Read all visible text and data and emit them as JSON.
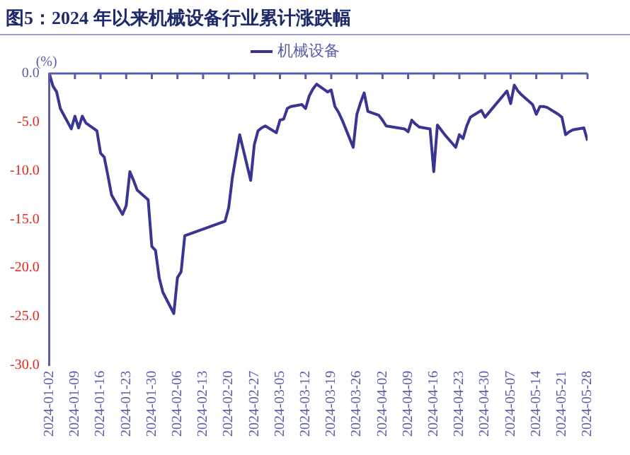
{
  "chart_data": {
    "type": "line",
    "title": "图5：2024 年以来机械设备行业累计涨跌幅",
    "ylabel": "(%)",
    "legend": "top",
    "marker": "none",
    "line_style": "solid",
    "x": [
      "2024-01-02",
      "2024-01-03",
      "2024-01-04",
      "2024-01-05",
      "2024-01-08",
      "2024-01-09",
      "2024-01-10",
      "2024-01-11",
      "2024-01-12",
      "2024-01-15",
      "2024-01-16",
      "2024-01-17",
      "2024-01-18",
      "2024-01-19",
      "2024-01-22",
      "2024-01-23",
      "2024-01-24",
      "2024-01-25",
      "2024-01-26",
      "2024-01-29",
      "2024-01-30",
      "2024-01-31",
      "2024-02-01",
      "2024-02-02",
      "2024-02-05",
      "2024-02-06",
      "2024-02-07",
      "2024-02-08",
      "2024-02-19",
      "2024-02-20",
      "2024-02-21",
      "2024-02-22",
      "2024-02-23",
      "2024-02-26",
      "2024-02-27",
      "2024-02-28",
      "2024-02-29",
      "2024-03-01",
      "2024-03-04",
      "2024-03-05",
      "2024-03-06",
      "2024-03-07",
      "2024-03-08",
      "2024-03-11",
      "2024-03-12",
      "2024-03-13",
      "2024-03-14",
      "2024-03-15",
      "2024-03-18",
      "2024-03-19",
      "2024-03-20",
      "2024-03-21",
      "2024-03-22",
      "2024-03-25",
      "2024-03-26",
      "2024-03-27",
      "2024-03-28",
      "2024-03-29",
      "2024-04-01",
      "2024-04-02",
      "2024-04-03",
      "2024-04-08",
      "2024-04-09",
      "2024-04-10",
      "2024-04-11",
      "2024-04-12",
      "2024-04-15",
      "2024-04-16",
      "2024-04-17",
      "2024-04-18",
      "2024-04-19",
      "2024-04-22",
      "2024-04-23",
      "2024-04-24",
      "2024-04-25",
      "2024-04-26",
      "2024-04-29",
      "2024-04-30",
      "2024-05-06",
      "2024-05-07",
      "2024-05-08",
      "2024-05-09",
      "2024-05-10",
      "2024-05-13",
      "2024-05-14",
      "2024-05-15",
      "2024-05-16",
      "2024-05-17",
      "2024-05-20",
      "2024-05-21",
      "2024-05-22",
      "2024-05-23",
      "2024-05-24",
      "2024-05-27",
      "2024-05-28"
    ],
    "series": [
      {
        "name": "机械设备",
        "color": "#3a3592",
        "values": [
          0,
          -1.3,
          -1.9,
          -3.6,
          -5.7,
          -4.4,
          -5.6,
          -4.4,
          -5.1,
          -5.9,
          -8.2,
          -8.6,
          -10.5,
          -12.5,
          -14.5,
          -13.6,
          -10.1,
          -11.0,
          -12.0,
          -13.0,
          -17.8,
          -18.2,
          -21.0,
          -22.5,
          -24.7,
          -21.0,
          -20.4,
          -16.7,
          -15.2,
          -13.8,
          -10.7,
          -8.5,
          -6.3,
          -11.0,
          -7.3,
          -5.9,
          -5.6,
          -5.4,
          -6.1,
          -4.8,
          -4.7,
          -3.6,
          -3.4,
          -3.2,
          -3.6,
          -2.3,
          -1.6,
          -1.1,
          -1.9,
          -1.7,
          -3.4,
          -4.0,
          -4.8,
          -7.6,
          -4.2,
          -3.0,
          -2.0,
          -3.9,
          -4.3,
          -4.8,
          -5.4,
          -5.7,
          -6.0,
          -4.8,
          -5.2,
          -5.5,
          -5.7,
          -10.1,
          -5.3,
          -5.8,
          -6.3,
          -7.6,
          -6.3,
          -6.7,
          -5.4,
          -4.5,
          -3.8,
          -4.5,
          -1.8,
          -3.1,
          -1.2,
          -1.8,
          -2.2,
          -3.2,
          -4.2,
          -3.4,
          -3.4,
          -3.5,
          -4.2,
          -4.5,
          -6.3,
          -6.0,
          -5.8,
          -5.6,
          -6.9
        ]
      }
    ],
    "xlim": [
      "2024-01-02",
      "2024-05-28"
    ],
    "xticks": [
      "2024-01-02",
      "2024-01-09",
      "2024-01-16",
      "2024-01-23",
      "2024-01-30",
      "2024-02-06",
      "2024-02-13",
      "2024-02-20",
      "2024-02-27",
      "2024-03-05",
      "2024-03-12",
      "2024-03-19",
      "2024-03-26",
      "2024-04-02",
      "2024-04-09",
      "2024-04-16",
      "2024-04-23",
      "2024-04-30",
      "2024-05-07",
      "2024-05-14",
      "2024-05-21",
      "2024-05-28"
    ],
    "ylim": [
      -30,
      0
    ],
    "yticks": [
      {
        "value": 0,
        "label": "0.0"
      },
      {
        "value": -5,
        "label": "-5.0"
      },
      {
        "value": -10,
        "label": "-10.0"
      },
      {
        "value": -15,
        "label": "-15.0"
      },
      {
        "value": -20,
        "label": "-20.0"
      },
      {
        "value": -25,
        "label": "-25.0"
      },
      {
        "value": -30,
        "label": "-30.0"
      }
    ]
  }
}
